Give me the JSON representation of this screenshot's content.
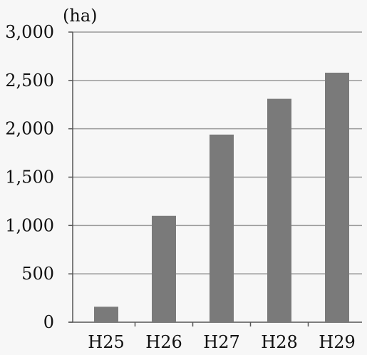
{
  "chart_data": {
    "type": "bar",
    "unit_label": "(ha)",
    "categories": [
      "H25",
      "H26",
      "H27",
      "H28",
      "H29"
    ],
    "values": [
      160,
      1100,
      1940,
      2310,
      2580
    ],
    "ylim": [
      0,
      3000
    ],
    "yticks": [
      0,
      500,
      1000,
      1500,
      2000,
      2500,
      3000
    ],
    "ytick_labels": [
      "0",
      "500",
      "1,000",
      "1,500",
      "2,000",
      "2,500",
      "3,000"
    ],
    "grid": true,
    "title": "",
    "xlabel": "",
    "ylabel": "",
    "colors": {
      "bar": "#7a7a7a",
      "grid": "#9a9a9a",
      "axis": "#555555",
      "background": "#f7f7f7"
    }
  }
}
